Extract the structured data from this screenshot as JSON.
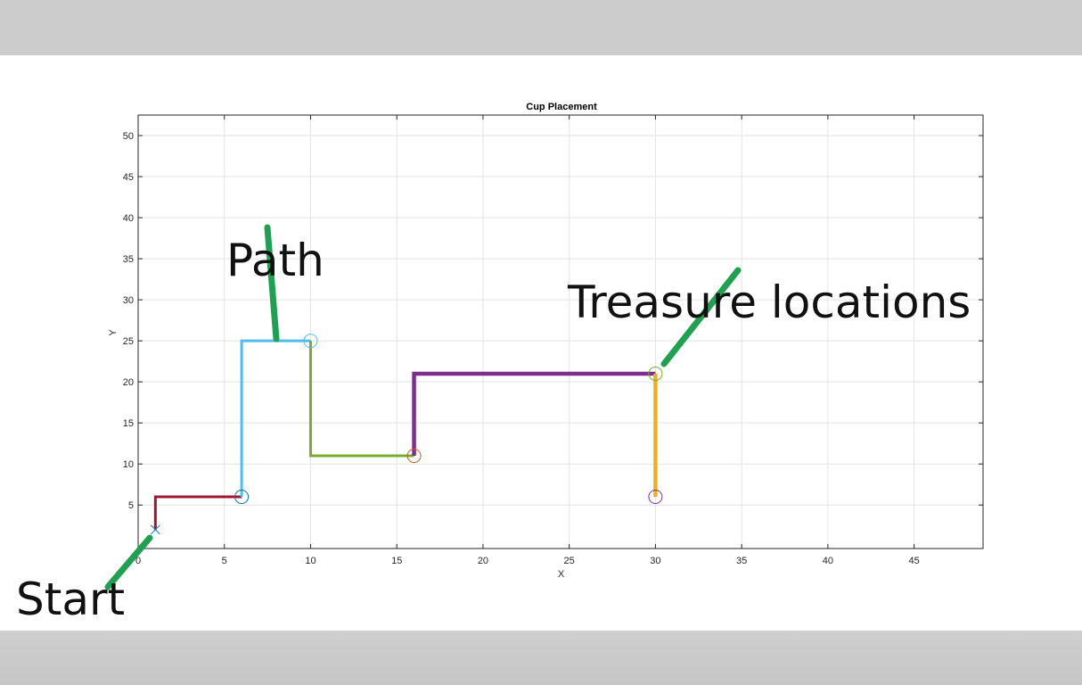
{
  "chart_data": {
    "type": "line",
    "title": "Cup Placement",
    "xlabel": "X",
    "ylabel": "Y",
    "xlim": [
      0,
      49
    ],
    "ylim": [
      -0.3,
      52.5
    ],
    "xticks": [
      0,
      5,
      10,
      15,
      20,
      25,
      30,
      35,
      40,
      45
    ],
    "yticks": [
      5,
      10,
      15,
      20,
      25,
      30,
      35,
      40,
      45,
      50
    ],
    "grid": true,
    "segments": [
      {
        "color": "#a2142f",
        "width": "thin",
        "points": [
          [
            1,
            2
          ],
          [
            1,
            6
          ],
          [
            6,
            6
          ]
        ]
      },
      {
        "color": "#4dbeee",
        "width": "thin",
        "points": [
          [
            6,
            6
          ],
          [
            6,
            25
          ],
          [
            10,
            25
          ]
        ]
      },
      {
        "color": "#77ac30",
        "width": "thin",
        "points": [
          [
            10,
            25
          ],
          [
            10,
            11
          ],
          [
            16,
            11
          ]
        ]
      },
      {
        "color": "#7e2f8e",
        "width": "thick",
        "points": [
          [
            16,
            11
          ],
          [
            16,
            21
          ],
          [
            30,
            21
          ]
        ]
      },
      {
        "color": "#edb120",
        "width": "thick",
        "points": [
          [
            30,
            21
          ],
          [
            30,
            6
          ]
        ]
      }
    ],
    "start_marker": {
      "x": 1,
      "y": 2,
      "shape": "x",
      "color": "#0072bd"
    },
    "treasure_markers": [
      {
        "x": 6,
        "y": 6,
        "color": "#0072bd"
      },
      {
        "x": 10,
        "y": 25,
        "color": "#4dbeee"
      },
      {
        "x": 16,
        "y": 11,
        "color": "#d95319"
      },
      {
        "x": 30,
        "y": 21,
        "color": "#77ac30"
      },
      {
        "x": 30,
        "y": 6,
        "color": "#7e2f8e"
      }
    ]
  },
  "annotations": {
    "path_label": "Path",
    "treasure_label": "Treasure locations",
    "start_label": "Start",
    "arrow_color": "#20a050"
  }
}
